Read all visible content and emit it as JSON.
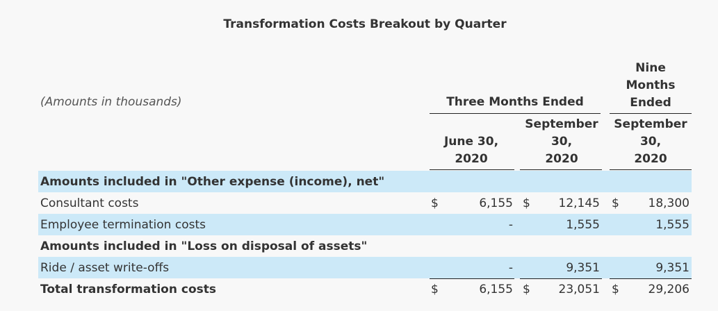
{
  "title": "Transformation Costs Breakout by Quarter",
  "amounts_note": "(Amounts in thousands)",
  "group_header_three_months": "Three Months Ended",
  "group_header_nine_months": [
    "Nine",
    "Months",
    "Ended"
  ],
  "columns": [
    {
      "lines": [
        "June 30,",
        "2020"
      ]
    },
    {
      "lines": [
        "September",
        "30,",
        "2020"
      ]
    },
    {
      "lines": [
        "September",
        "30,",
        "2020"
      ]
    }
  ],
  "currency_symbol": "$",
  "rows": [
    {
      "label": "Amounts included in \"Other expense (income), net\"",
      "bold": true,
      "section": true,
      "shaded": true
    },
    {
      "label": "Consultant costs",
      "values": [
        "6,155",
        "12,145",
        "18,300"
      ],
      "currency": true,
      "shaded": false
    },
    {
      "label": "Employee termination costs",
      "values": [
        "-",
        "1,555",
        "1,555"
      ],
      "currency": false,
      "shaded": true
    },
    {
      "label": "Amounts included in \"Loss on disposal of assets\"",
      "bold": true,
      "section": true,
      "shaded": false
    },
    {
      "label": "Ride / asset write-offs",
      "values": [
        "-",
        "9,351",
        "9,351"
      ],
      "currency": false,
      "shaded": true
    },
    {
      "label": "Total transformation costs",
      "values": [
        "6,155",
        "23,051",
        "29,206"
      ],
      "currency": true,
      "bold": true,
      "shaded": false
    }
  ],
  "colors": {
    "shaded_row": "#cce9f8",
    "text": "#333333",
    "background": "#f8f8f8"
  }
}
